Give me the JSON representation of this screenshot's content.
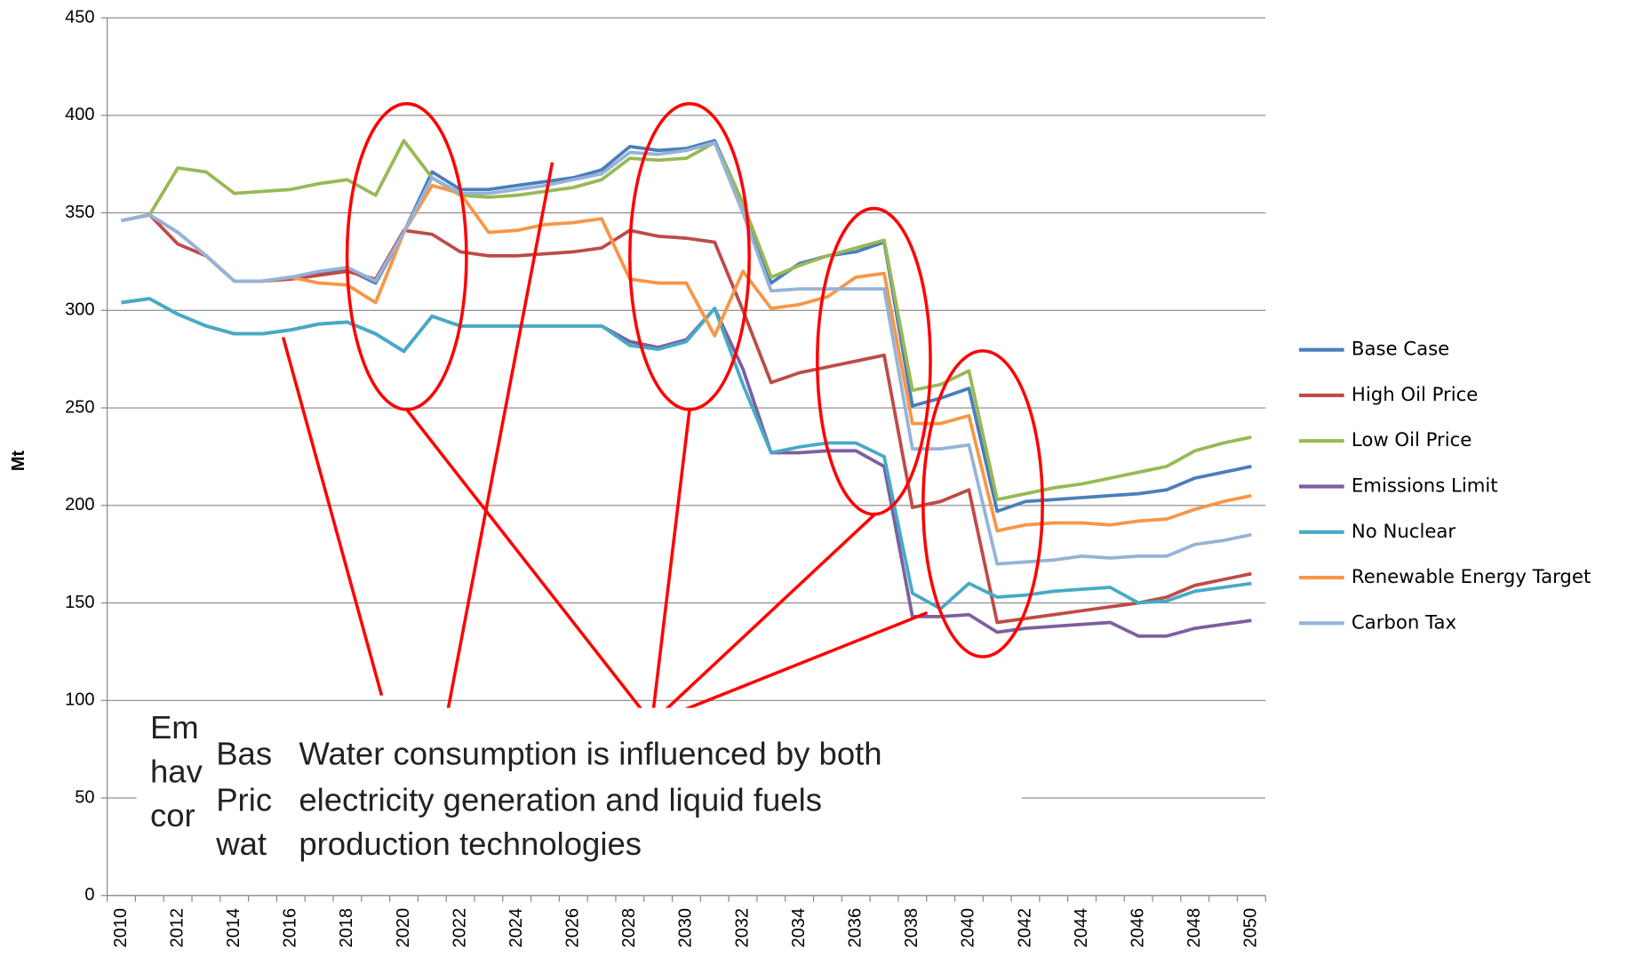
{
  "chart_data": {
    "type": "line",
    "y_label": "Mt",
    "categories": [
      "2010",
      null,
      "2012",
      null,
      "2014",
      null,
      "2016",
      null,
      "2018",
      null,
      "2020",
      null,
      "2022",
      null,
      "2024",
      null,
      "2026",
      null,
      "2028",
      null,
      "2030",
      null,
      "2032",
      null,
      "2034",
      null,
      "2036",
      null,
      "2038",
      null,
      "2040",
      null,
      "2042",
      null,
      "2044",
      null,
      "2046",
      null,
      "2048",
      null,
      "2050"
    ],
    "ylim": [
      0,
      450
    ],
    "yticks": [
      0,
      50,
      100,
      150,
      200,
      250,
      300,
      350,
      400,
      450
    ],
    "grid": true,
    "legend": "right",
    "series": [
      {
        "name": "Base Case",
        "color": "#4a7ebb",
        "values": [
          346,
          349,
          340,
          328,
          315,
          315,
          317,
          319,
          321,
          314,
          340,
          371,
          362,
          362,
          364,
          366,
          368,
          372,
          384,
          382,
          383,
          387,
          355,
          314,
          324,
          328,
          330,
          335,
          251,
          255,
          260,
          197,
          202,
          203,
          204,
          205,
          206,
          208,
          214,
          217,
          220
        ]
      },
      {
        "name": "High Oil Price",
        "color": "#be4b48",
        "values": [
          346,
          349,
          334,
          328,
          315,
          315,
          316,
          318,
          320,
          316,
          341,
          339,
          330,
          328,
          328,
          329,
          330,
          332,
          341,
          338,
          337,
          335,
          300,
          263,
          268,
          271,
          274,
          277,
          199,
          202,
          208,
          140,
          142,
          144,
          146,
          148,
          150,
          153,
          159,
          162,
          165
        ]
      },
      {
        "name": "Low Oil Price",
        "color": "#98b954",
        "values": [
          346,
          349,
          373,
          371,
          360,
          361,
          362,
          365,
          367,
          359,
          387,
          368,
          359,
          358,
          359,
          361,
          363,
          367,
          378,
          377,
          378,
          386,
          355,
          317,
          323,
          328,
          332,
          336,
          259,
          262,
          269,
          203,
          206,
          209,
          211,
          214,
          217,
          220,
          228,
          232,
          235
        ]
      },
      {
        "name": "Emissions Limit",
        "color": "#7d5fa0",
        "values": [
          304,
          306,
          298,
          292,
          288,
          288,
          290,
          293,
          294,
          288,
          279,
          297,
          292,
          292,
          292,
          292,
          292,
          292,
          284,
          281,
          285,
          301,
          270,
          227,
          227,
          228,
          228,
          220,
          143,
          143,
          144,
          135,
          137,
          138,
          139,
          140,
          133,
          133,
          137,
          139,
          141
        ]
      },
      {
        "name": "No Nuclear",
        "color": "#46aac5",
        "values": [
          304,
          306,
          298,
          292,
          288,
          288,
          290,
          293,
          294,
          288,
          279,
          297,
          292,
          292,
          292,
          292,
          292,
          292,
          282,
          280,
          284,
          301,
          262,
          227,
          230,
          232,
          232,
          225,
          155,
          147,
          160,
          153,
          154,
          156,
          157,
          158,
          150,
          151,
          156,
          158,
          160
        ]
      },
      {
        "name": "Renewable Energy Target",
        "color": "#f79646",
        "values": [
          346,
          349,
          340,
          328,
          315,
          315,
          317,
          314,
          313,
          304,
          340,
          364,
          360,
          340,
          341,
          344,
          345,
          347,
          316,
          314,
          314,
          287,
          320,
          301,
          303,
          307,
          317,
          319,
          242,
          242,
          246,
          187,
          190,
          191,
          191,
          190,
          192,
          193,
          198,
          202,
          205
        ]
      },
      {
        "name": "Carbon Tax",
        "color": "#95b3d7",
        "values": [
          346,
          349,
          340,
          328,
          315,
          315,
          317,
          320,
          322,
          315,
          340,
          368,
          360,
          360,
          362,
          364,
          367,
          370,
          381,
          380,
          382,
          386,
          350,
          310,
          311,
          311,
          311,
          311,
          229,
          229,
          231,
          170,
          171,
          172,
          174,
          173,
          174,
          174,
          180,
          182,
          185
        ]
      }
    ],
    "annotations": [
      {
        "lines": [
          "Em",
          "hav",
          "cor"
        ]
      },
      {
        "lines": [
          "Bas",
          "Pric",
          "wat"
        ]
      },
      {
        "lines": [
          "Water consumption is influenced by both",
          "electricity generation and liquid fuels",
          "production technologies"
        ]
      }
    ]
  }
}
